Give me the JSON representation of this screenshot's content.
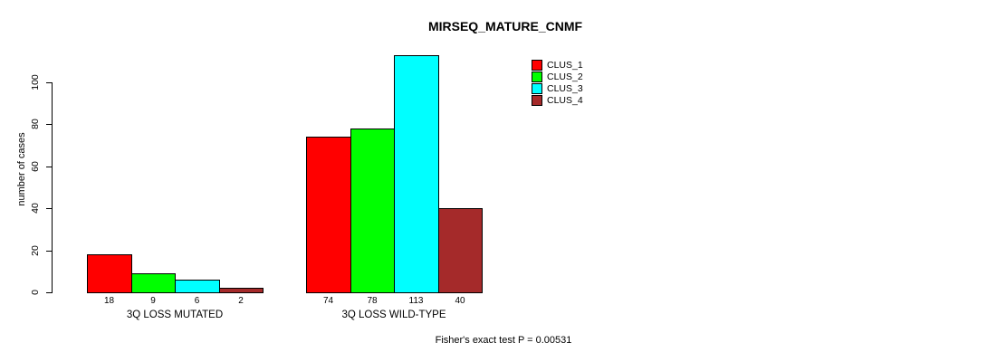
{
  "chart_data": {
    "type": "bar",
    "title": "MIRSEQ_MATURE_CNMF",
    "ylabel": "number of cases",
    "xlabel": "",
    "categories": [
      "3Q LOSS MUTATED",
      "3Q LOSS WILD-TYPE"
    ],
    "series": [
      {
        "name": "CLUS_1",
        "color": "#ff0000",
        "values": [
          18,
          74
        ]
      },
      {
        "name": "CLUS_2",
        "color": "#00ff00",
        "values": [
          9,
          78
        ]
      },
      {
        "name": "CLUS_3",
        "color": "#00ffff",
        "values": [
          6,
          113
        ]
      },
      {
        "name": "CLUS_4",
        "color": "#a52a2a",
        "values": [
          2,
          40
        ]
      }
    ],
    "y_ticks": [
      0,
      20,
      40,
      60,
      80,
      100
    ],
    "ylim": [
      0,
      113
    ],
    "grid": false,
    "legend_position": "top-right",
    "bar_border_color": "#000000",
    "background_color": "#ffffff",
    "annotation": "Fisher's exact test P = 0.00531"
  }
}
